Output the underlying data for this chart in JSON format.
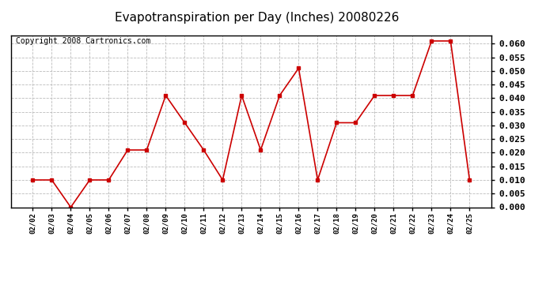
{
  "title": "Evapotranspiration per Day (Inches) 20080226",
  "copyright": "Copyright 2008 Cartronics.com",
  "dates": [
    "02/02",
    "02/03",
    "02/04",
    "02/05",
    "02/06",
    "02/07",
    "02/08",
    "02/09",
    "02/10",
    "02/11",
    "02/12",
    "02/13",
    "02/14",
    "02/15",
    "02/16",
    "02/17",
    "02/18",
    "02/19",
    "02/20",
    "02/21",
    "02/22",
    "02/23",
    "02/24",
    "02/25"
  ],
  "values": [
    0.01,
    0.01,
    0.0,
    0.01,
    0.01,
    0.021,
    0.021,
    0.041,
    0.031,
    0.021,
    0.01,
    0.041,
    0.021,
    0.041,
    0.051,
    0.01,
    0.031,
    0.031,
    0.041,
    0.041,
    0.041,
    0.061,
    0.061,
    0.01
  ],
  "line_color": "#cc0000",
  "marker": "s",
  "marker_size": 3,
  "ylim": [
    0.0,
    0.063
  ],
  "yticks": [
    0.0,
    0.005,
    0.01,
    0.015,
    0.02,
    0.025,
    0.03,
    0.035,
    0.04,
    0.045,
    0.05,
    0.055,
    0.06
  ],
  "background_color": "#ffffff",
  "grid_color": "#bbbbbb",
  "title_fontsize": 11,
  "copyright_fontsize": 7
}
